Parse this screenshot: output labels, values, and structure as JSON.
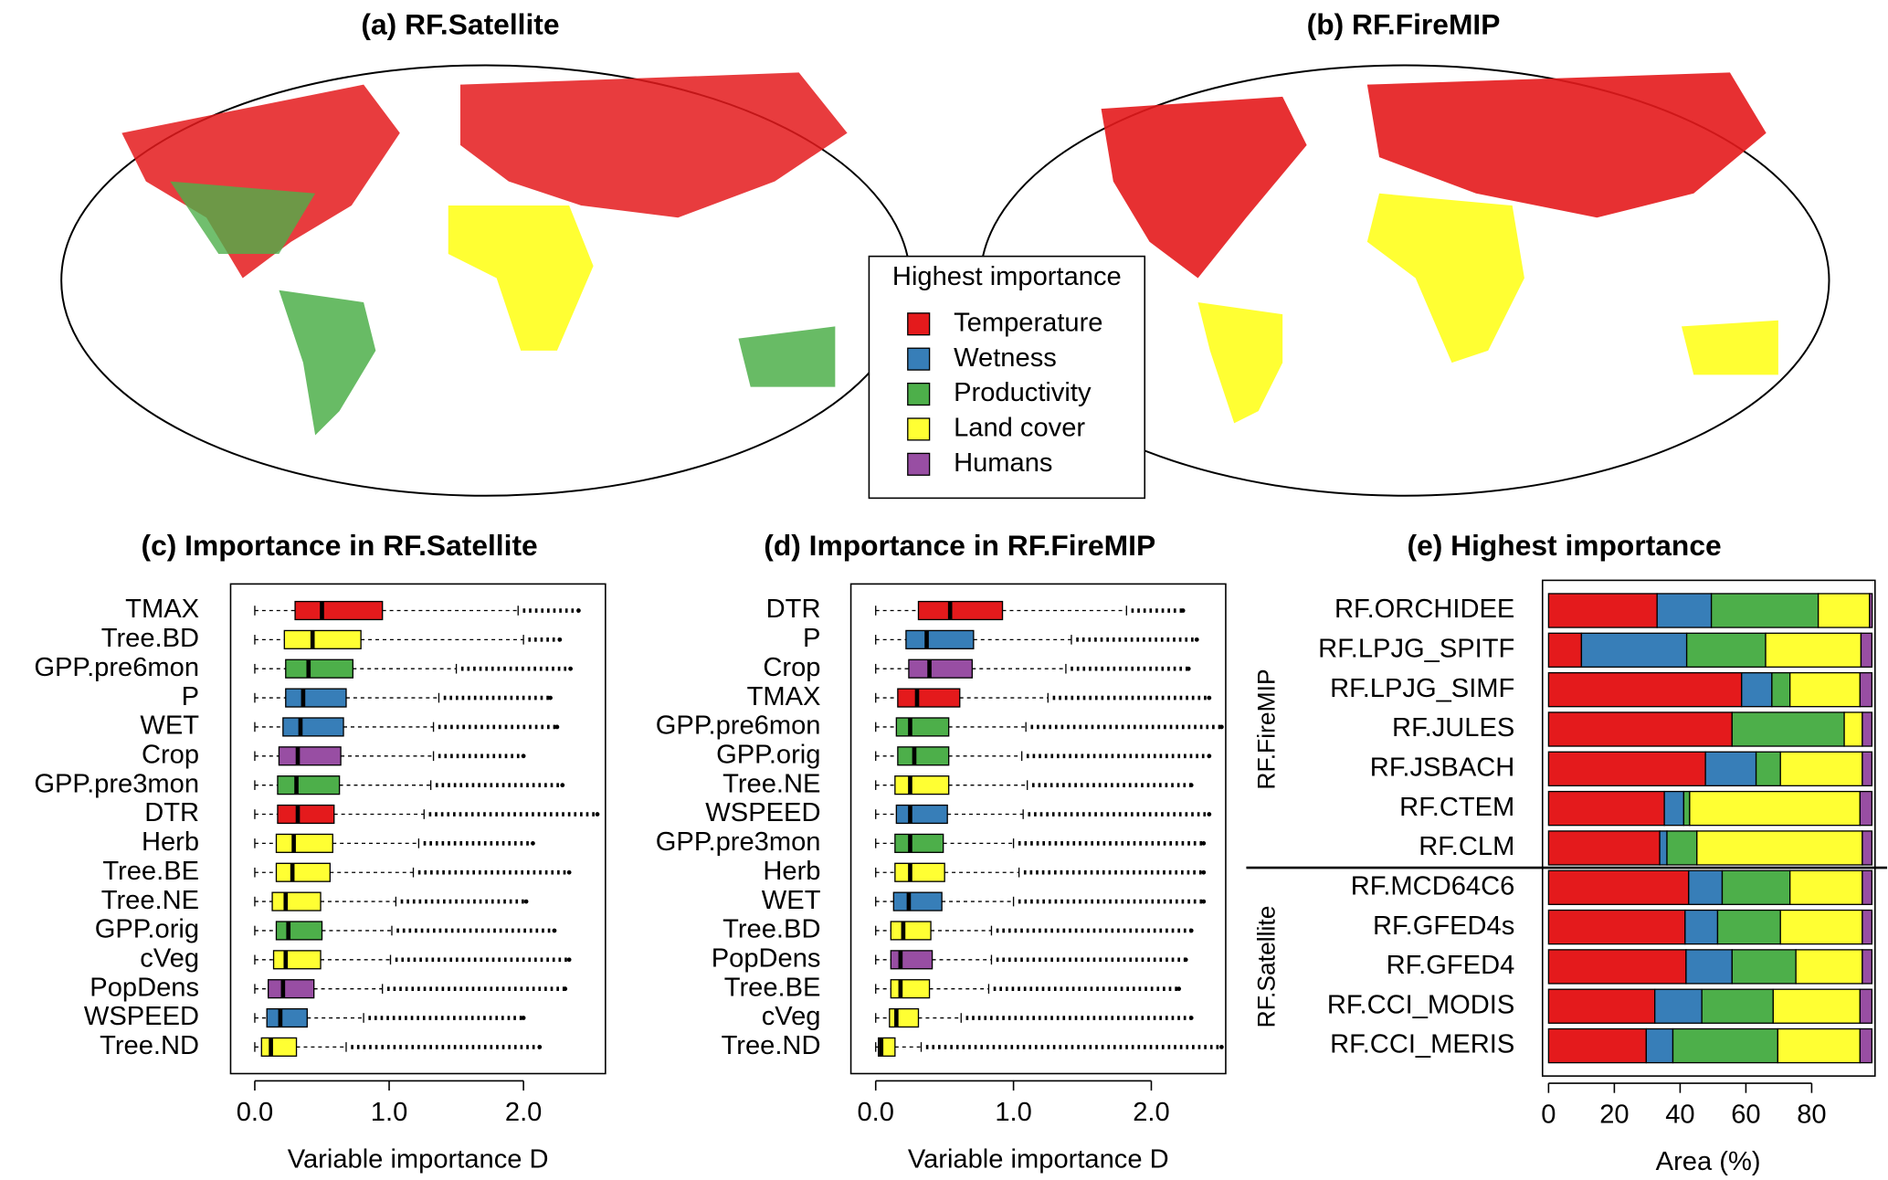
{
  "chart_data": [
    {
      "type": "map",
      "title": "(a) RF.Satellite"
    },
    {
      "type": "map",
      "title": "(b) RF.FireMIP"
    },
    {
      "type": "box",
      "title": "(c) Importance in RF.Satellite",
      "xlabel": "Variable importance D",
      "categories": [
        "TMAX",
        "Tree.BD",
        "GPP.pre6mon",
        "P",
        "WET",
        "Crop",
        "GPP.pre3mon",
        "DTR",
        "Herb",
        "Tree.BE",
        "Tree.NE",
        "GPP.orig",
        "cVeg",
        "PopDens",
        "WSPEED",
        "Tree.ND"
      ],
      "colors": [
        "#e41a1c",
        "#ffff33",
        "#4daf4a",
        "#377eb8",
        "#377eb8",
        "#984ea3",
        "#4daf4a",
        "#e41a1c",
        "#ffff33",
        "#ffff33",
        "#ffff33",
        "#4daf4a",
        "#ffff33",
        "#984ea3",
        "#377eb8",
        "#ffff33"
      ],
      "whisker_low": [
        0,
        0,
        0,
        0,
        0,
        0,
        0,
        0,
        0,
        0,
        0,
        0,
        0,
        0,
        0,
        0
      ],
      "q1": [
        0.3,
        0.22,
        0.23,
        0.23,
        0.21,
        0.18,
        0.17,
        0.17,
        0.16,
        0.16,
        0.13,
        0.16,
        0.14,
        0.1,
        0.09,
        0.05
      ],
      "median": [
        0.5,
        0.43,
        0.4,
        0.36,
        0.34,
        0.32,
        0.31,
        0.32,
        0.29,
        0.28,
        0.23,
        0.25,
        0.23,
        0.21,
        0.19,
        0.12
      ],
      "q3": [
        0.95,
        0.79,
        0.73,
        0.68,
        0.66,
        0.64,
        0.63,
        0.59,
        0.58,
        0.56,
        0.49,
        0.5,
        0.49,
        0.44,
        0.39,
        0.31
      ],
      "whisker_high": [
        1.96,
        2.0,
        1.5,
        1.37,
        1.33,
        1.33,
        1.31,
        1.26,
        1.22,
        1.18,
        1.05,
        1.02,
        1.01,
        0.95,
        0.81,
        0.68
      ],
      "outlier_max": [
        2.41,
        2.27,
        2.35,
        2.2,
        2.25,
        2.0,
        2.29,
        2.55,
        2.07,
        2.34,
        2.02,
        2.23,
        2.34,
        2.31,
        2.0,
        2.12
      ],
      "xlim": [
        -0.18,
        2.61
      ],
      "xticks": [
        {
          "value": 0,
          "label": "0.0"
        },
        {
          "value": 1,
          "label": "1.0"
        },
        {
          "value": 2,
          "label": "2.0"
        }
      ]
    },
    {
      "type": "box",
      "title": "(d) Importance in RF.FireMIP",
      "xlabel": "Variable importance D",
      "categories": [
        "DTR",
        "P",
        "Crop",
        "TMAX",
        "GPP.pre6mon",
        "GPP.orig",
        "Tree.NE",
        "WSPEED",
        "GPP.pre3mon",
        "Herb",
        "WET",
        "Tree.BD",
        "PopDens",
        "Tree.BE",
        "cVeg",
        "Tree.ND"
      ],
      "colors": [
        "#e41a1c",
        "#377eb8",
        "#984ea3",
        "#e41a1c",
        "#4daf4a",
        "#4daf4a",
        "#ffff33",
        "#377eb8",
        "#4daf4a",
        "#ffff33",
        "#377eb8",
        "#ffff33",
        "#984ea3",
        "#ffff33",
        "#ffff33",
        "#ffff33"
      ],
      "whisker_low": [
        0,
        0,
        0,
        0,
        0,
        0,
        0,
        0,
        0,
        0,
        0,
        0,
        0,
        0,
        0,
        0
      ],
      "q1": [
        0.31,
        0.22,
        0.24,
        0.16,
        0.15,
        0.16,
        0.14,
        0.15,
        0.14,
        0.14,
        0.13,
        0.11,
        0.11,
        0.11,
        0.1,
        0.02
      ],
      "median": [
        0.54,
        0.37,
        0.39,
        0.3,
        0.25,
        0.28,
        0.25,
        0.25,
        0.25,
        0.25,
        0.24,
        0.2,
        0.18,
        0.18,
        0.15,
        0.04
      ],
      "q3": [
        0.92,
        0.71,
        0.7,
        0.61,
        0.53,
        0.53,
        0.53,
        0.52,
        0.49,
        0.5,
        0.48,
        0.4,
        0.41,
        0.39,
        0.31,
        0.14
      ],
      "whisker_high": [
        1.82,
        1.42,
        1.38,
        1.25,
        1.09,
        1.06,
        1.1,
        1.07,
        1.0,
        1.04,
        1.0,
        0.84,
        0.84,
        0.82,
        0.62,
        0.33
      ],
      "outlier_max": [
        2.23,
        2.33,
        2.27,
        2.42,
        2.51,
        2.42,
        2.29,
        2.42,
        2.38,
        2.38,
        2.38,
        2.29,
        2.25,
        2.2,
        2.29,
        2.51
      ],
      "xlim": [
        -0.18,
        2.54
      ],
      "xticks": [
        {
          "value": 0,
          "label": "0.0"
        },
        {
          "value": 1,
          "label": "1.0"
        },
        {
          "value": 2,
          "label": "2.0"
        }
      ]
    },
    {
      "type": "stacked_barh",
      "title": "(e) Highest importance",
      "xlabel": "Area (%)",
      "legend_title": "Highest importance",
      "groups": [
        {
          "label": "RF.FireMIP",
          "categories": [
            "RF.ORCHIDEE",
            "RF.LPJG_SPITF",
            "RF.LPJG_SIMF",
            "RF.JULES",
            "RF.JSBACH",
            "RF.CTEM",
            "RF.CLM"
          ]
        },
        {
          "label": "RF.Satellite",
          "categories": [
            "RF.MCD64C6",
            "RF.GFED4s",
            "RF.GFED4",
            "RF.CCI_MODIS",
            "RF.CCI_MERIS"
          ]
        }
      ],
      "series": [
        {
          "name": "Temperature",
          "color": "#e41a1c",
          "values": [
            33,
            10,
            58.7,
            55.8,
            47.7,
            35.2,
            33.8,
            42.6,
            41.5,
            41.8,
            32.3,
            29.7
          ]
        },
        {
          "name": "Wetness",
          "color": "#377eb8",
          "values": [
            16.5,
            32,
            9.2,
            0,
            15.4,
            5.9,
            2.2,
            10.2,
            9.9,
            14,
            14.3,
            8.1
          ]
        },
        {
          "name": "Productivity",
          "color": "#4daf4a",
          "values": [
            32.5,
            24,
            5.5,
            34.1,
            7.4,
            1.8,
            9.1,
            20.6,
            19.1,
            19.4,
            21.7,
            31.9
          ]
        },
        {
          "name": "Land cover",
          "color": "#ffff33",
          "values": [
            15.6,
            29,
            21.3,
            5.5,
            24.9,
            51.8,
            50.3,
            22,
            24.9,
            20.2,
            26.4,
            25
          ]
        },
        {
          "name": "Humans",
          "color": "#984ea3",
          "values": [
            0.8,
            3.3,
            3.6,
            2.9,
            2.9,
            3.6,
            2.9,
            2.9,
            2.9,
            2.9,
            3.6,
            3.6
          ]
        }
      ],
      "xlim": [
        0,
        100
      ],
      "xticks": [
        0,
        20,
        40,
        60,
        80
      ]
    }
  ]
}
